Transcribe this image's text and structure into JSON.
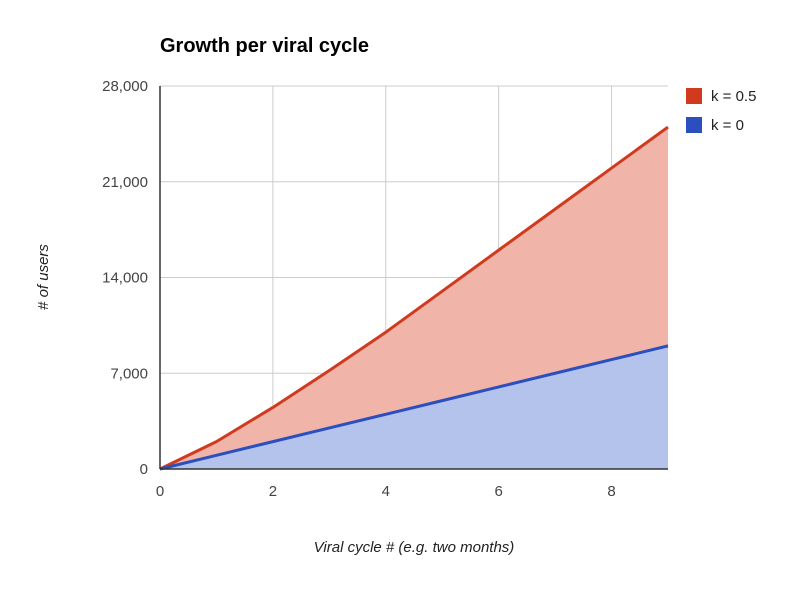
{
  "chart_data": {
    "type": "area",
    "title": "Growth per viral cycle",
    "xlabel": "Viral cycle # (e.g. two months)",
    "ylabel": "# of users",
    "xlim": [
      0,
      9
    ],
    "ylim": [
      0,
      28000
    ],
    "x_ticks": [
      0,
      2,
      4,
      6,
      8
    ],
    "x_tick_labels": [
      "0",
      "2",
      "4",
      "6",
      "8"
    ],
    "y_ticks": [
      0,
      7000,
      14000,
      21000,
      28000
    ],
    "y_tick_labels": [
      "0",
      "7,000",
      "14,000",
      "21,000",
      "28,000"
    ],
    "grid": true,
    "legend_position": "right",
    "x": [
      0,
      1,
      2,
      3,
      4,
      5,
      6,
      7,
      8,
      9
    ],
    "series": [
      {
        "name": "k = 0.5",
        "color": "#d03b1f",
        "fill": "#f0b4a8",
        "values": [
          0,
          2000,
          4500,
          7200,
          10000,
          13000,
          16000,
          19000,
          22000,
          25000
        ]
      },
      {
        "name": "k = 0",
        "color": "#2c4fc0",
        "fill": "#b3c3ec",
        "values": [
          0,
          1000,
          2000,
          3000,
          4000,
          5000,
          6000,
          7000,
          8000,
          9000
        ]
      }
    ]
  }
}
